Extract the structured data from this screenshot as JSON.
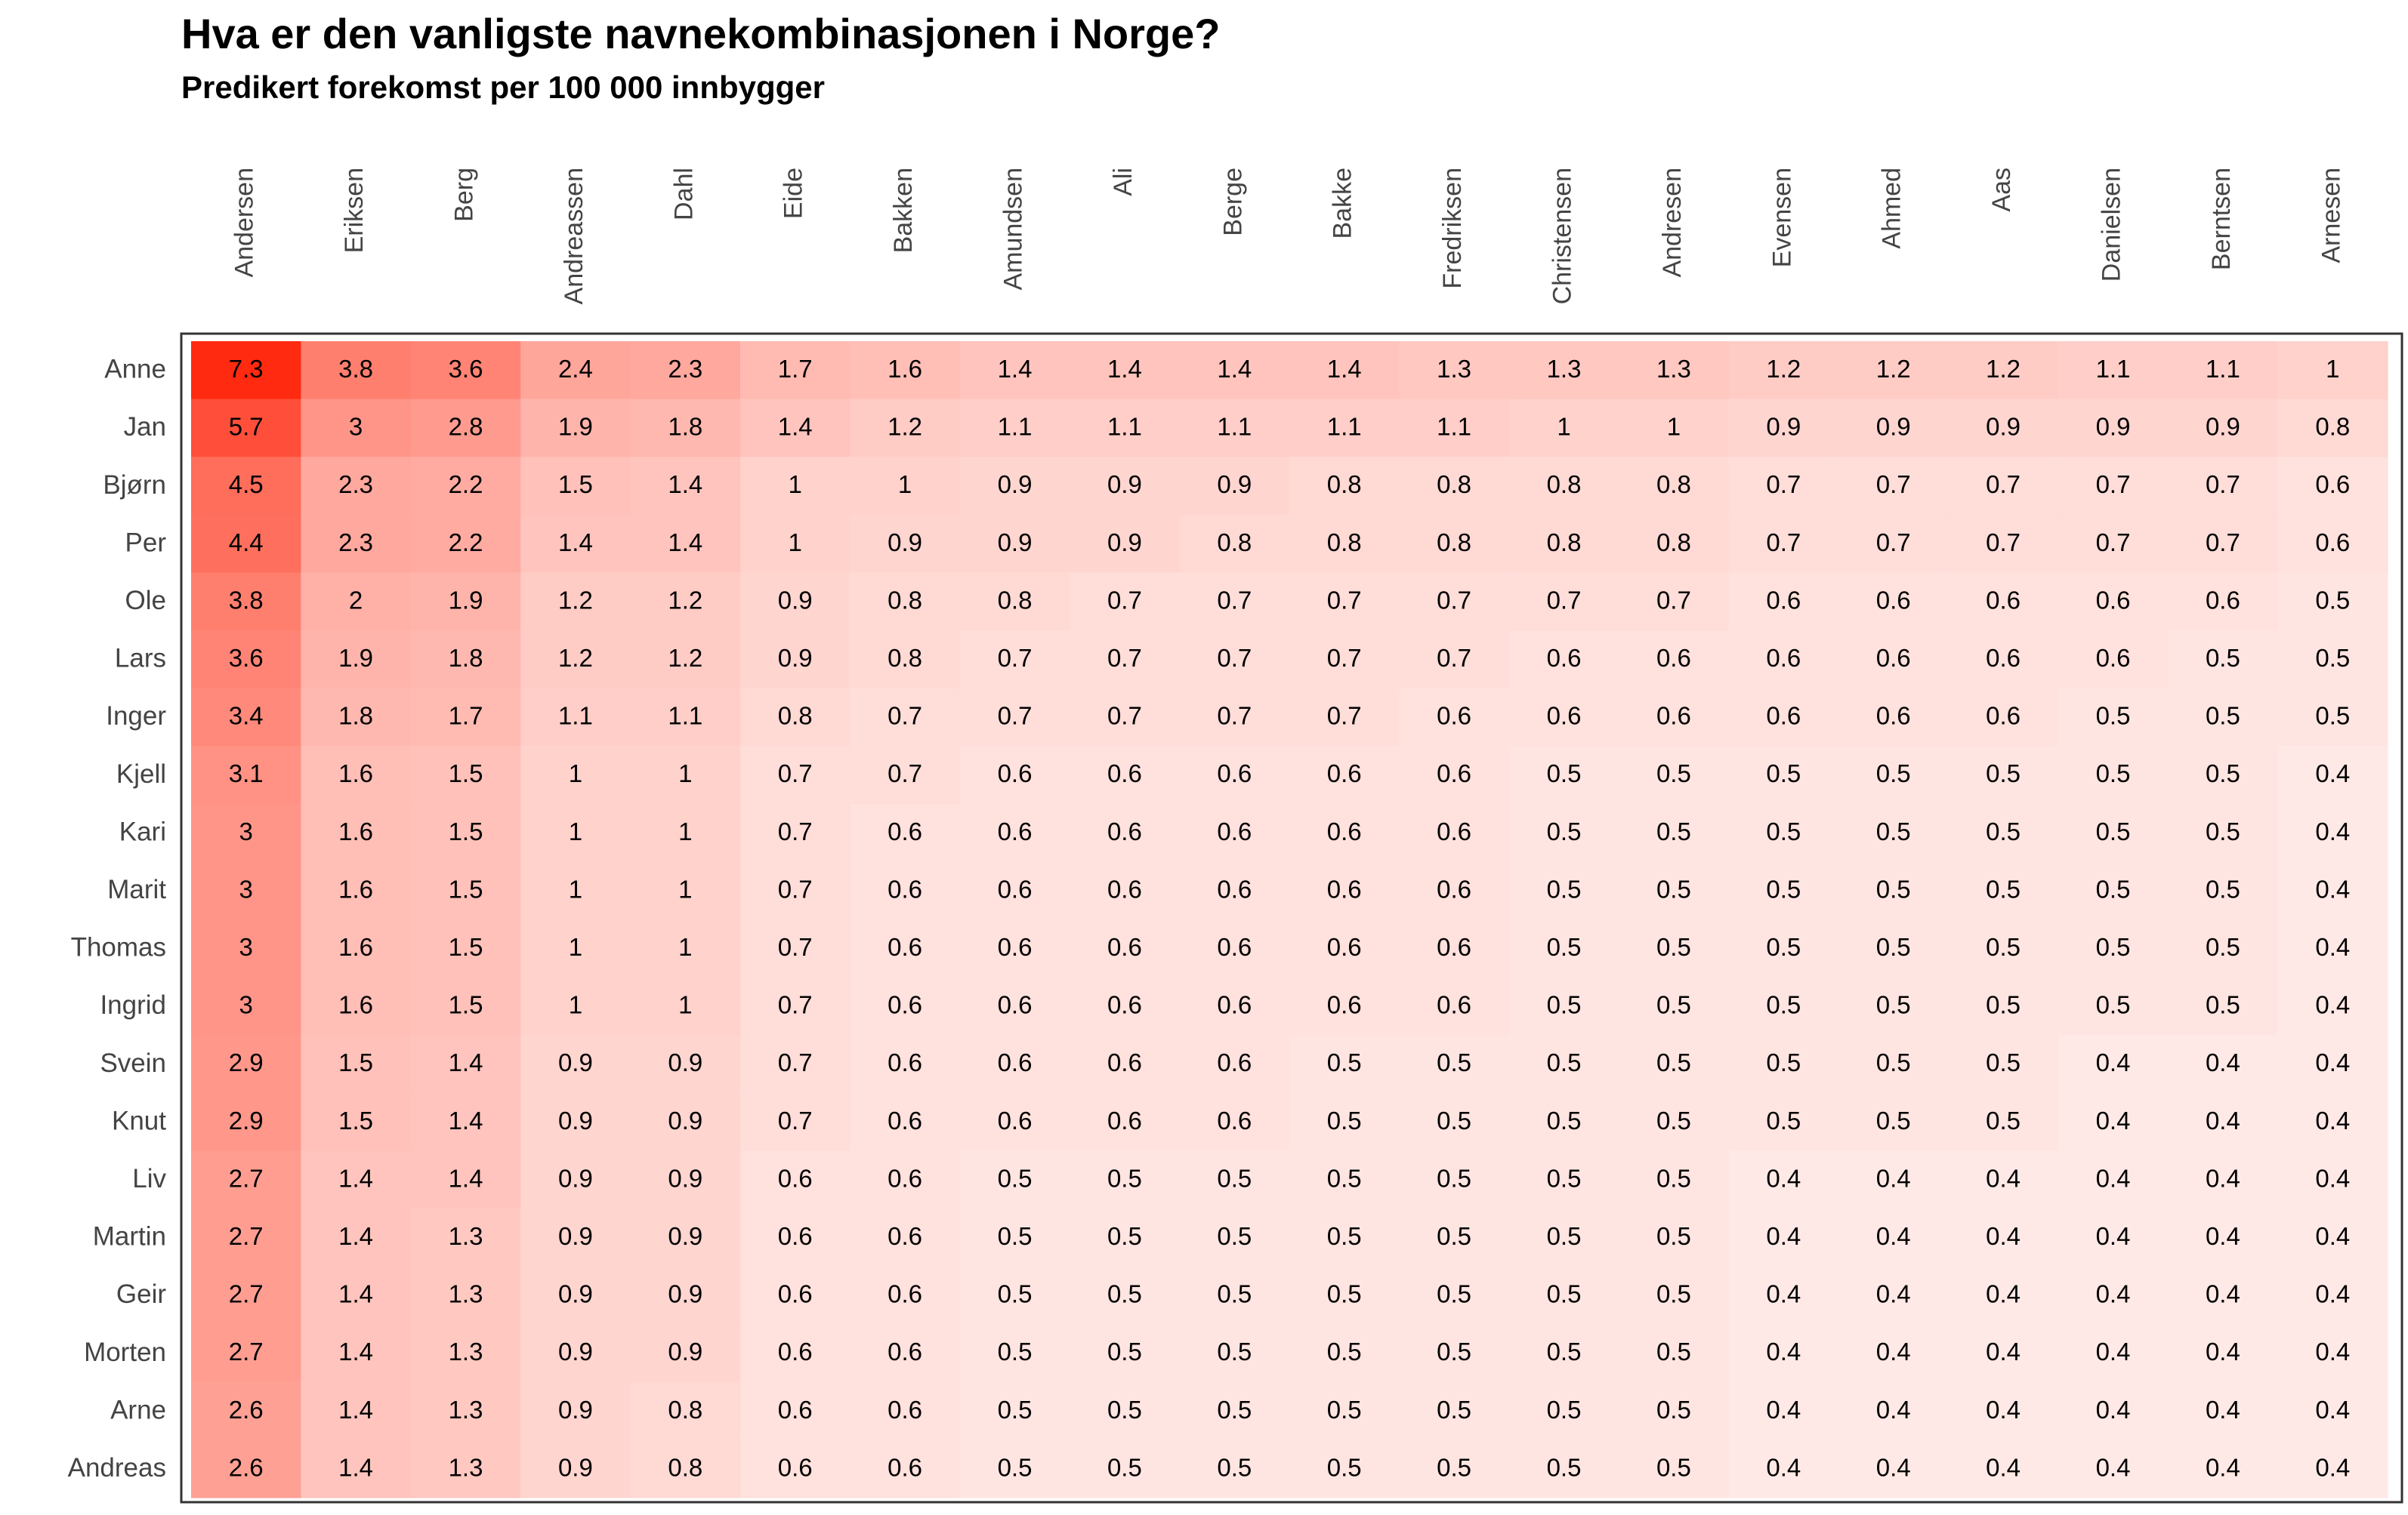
{
  "chart_data": {
    "type": "heatmap",
    "title": "Hva er den vanligste navnekombinasjonen i Norge?",
    "subtitle": "Predikert forekomst per 100 000 innbygger",
    "x_categories": [
      "Andersen",
      "Eriksen",
      "Berg",
      "Andreassen",
      "Dahl",
      "Eide",
      "Bakken",
      "Amundsen",
      "Ali",
      "Berge",
      "Bakke",
      "Fredriksen",
      "Christensen",
      "Andresen",
      "Evensen",
      "Ahmed",
      "Aas",
      "Danielsen",
      "Berntsen",
      "Arnesen"
    ],
    "y_categories": [
      "Anne",
      "Jan",
      "Bjørn",
      "Per",
      "Ole",
      "Lars",
      "Inger",
      "Kjell",
      "Kari",
      "Marit",
      "Thomas",
      "Ingrid",
      "Svein",
      "Knut",
      "Liv",
      "Martin",
      "Geir",
      "Morten",
      "Arne",
      "Andreas"
    ],
    "values": [
      [
        "7.3",
        "3.8",
        "3.6",
        "2.4",
        "2.3",
        "1.7",
        "1.6",
        "1.4",
        "1.4",
        "1.4",
        "1.4",
        "1.3",
        "1.3",
        "1.3",
        "1.2",
        "1.2",
        "1.2",
        "1.1",
        "1.1",
        "1"
      ],
      [
        "5.7",
        "3",
        "2.8",
        "1.9",
        "1.8",
        "1.4",
        "1.2",
        "1.1",
        "1.1",
        "1.1",
        "1.1",
        "1.1",
        "1",
        "1",
        "0.9",
        "0.9",
        "0.9",
        "0.9",
        "0.9",
        "0.8"
      ],
      [
        "4.5",
        "2.3",
        "2.2",
        "1.5",
        "1.4",
        "1",
        "1",
        "0.9",
        "0.9",
        "0.9",
        "0.8",
        "0.8",
        "0.8",
        "0.8",
        "0.7",
        "0.7",
        "0.7",
        "0.7",
        "0.7",
        "0.6"
      ],
      [
        "4.4",
        "2.3",
        "2.2",
        "1.4",
        "1.4",
        "1",
        "0.9",
        "0.9",
        "0.9",
        "0.8",
        "0.8",
        "0.8",
        "0.8",
        "0.8",
        "0.7",
        "0.7",
        "0.7",
        "0.7",
        "0.7",
        "0.6"
      ],
      [
        "3.8",
        "2",
        "1.9",
        "1.2",
        "1.2",
        "0.9",
        "0.8",
        "0.8",
        "0.7",
        "0.7",
        "0.7",
        "0.7",
        "0.7",
        "0.7",
        "0.6",
        "0.6",
        "0.6",
        "0.6",
        "0.6",
        "0.5"
      ],
      [
        "3.6",
        "1.9",
        "1.8",
        "1.2",
        "1.2",
        "0.9",
        "0.8",
        "0.7",
        "0.7",
        "0.7",
        "0.7",
        "0.7",
        "0.6",
        "0.6",
        "0.6",
        "0.6",
        "0.6",
        "0.6",
        "0.5",
        "0.5"
      ],
      [
        "3.4",
        "1.8",
        "1.7",
        "1.1",
        "1.1",
        "0.8",
        "0.7",
        "0.7",
        "0.7",
        "0.7",
        "0.7",
        "0.6",
        "0.6",
        "0.6",
        "0.6",
        "0.6",
        "0.6",
        "0.5",
        "0.5",
        "0.5"
      ],
      [
        "3.1",
        "1.6",
        "1.5",
        "1",
        "1",
        "0.7",
        "0.7",
        "0.6",
        "0.6",
        "0.6",
        "0.6",
        "0.6",
        "0.5",
        "0.5",
        "0.5",
        "0.5",
        "0.5",
        "0.5",
        "0.5",
        "0.4"
      ],
      [
        "3",
        "1.6",
        "1.5",
        "1",
        "1",
        "0.7",
        "0.6",
        "0.6",
        "0.6",
        "0.6",
        "0.6",
        "0.6",
        "0.5",
        "0.5",
        "0.5",
        "0.5",
        "0.5",
        "0.5",
        "0.5",
        "0.4"
      ],
      [
        "3",
        "1.6",
        "1.5",
        "1",
        "1",
        "0.7",
        "0.6",
        "0.6",
        "0.6",
        "0.6",
        "0.6",
        "0.6",
        "0.5",
        "0.5",
        "0.5",
        "0.5",
        "0.5",
        "0.5",
        "0.5",
        "0.4"
      ],
      [
        "3",
        "1.6",
        "1.5",
        "1",
        "1",
        "0.7",
        "0.6",
        "0.6",
        "0.6",
        "0.6",
        "0.6",
        "0.6",
        "0.5",
        "0.5",
        "0.5",
        "0.5",
        "0.5",
        "0.5",
        "0.5",
        "0.4"
      ],
      [
        "3",
        "1.6",
        "1.5",
        "1",
        "1",
        "0.7",
        "0.6",
        "0.6",
        "0.6",
        "0.6",
        "0.6",
        "0.6",
        "0.5",
        "0.5",
        "0.5",
        "0.5",
        "0.5",
        "0.5",
        "0.5",
        "0.4"
      ],
      [
        "2.9",
        "1.5",
        "1.4",
        "0.9",
        "0.9",
        "0.7",
        "0.6",
        "0.6",
        "0.6",
        "0.6",
        "0.5",
        "0.5",
        "0.5",
        "0.5",
        "0.5",
        "0.5",
        "0.5",
        "0.4",
        "0.4",
        "0.4"
      ],
      [
        "2.9",
        "1.5",
        "1.4",
        "0.9",
        "0.9",
        "0.7",
        "0.6",
        "0.6",
        "0.6",
        "0.6",
        "0.5",
        "0.5",
        "0.5",
        "0.5",
        "0.5",
        "0.5",
        "0.5",
        "0.4",
        "0.4",
        "0.4"
      ],
      [
        "2.7",
        "1.4",
        "1.4",
        "0.9",
        "0.9",
        "0.6",
        "0.6",
        "0.5",
        "0.5",
        "0.5",
        "0.5",
        "0.5",
        "0.5",
        "0.5",
        "0.4",
        "0.4",
        "0.4",
        "0.4",
        "0.4",
        "0.4"
      ],
      [
        "2.7",
        "1.4",
        "1.3",
        "0.9",
        "0.9",
        "0.6",
        "0.6",
        "0.5",
        "0.5",
        "0.5",
        "0.5",
        "0.5",
        "0.5",
        "0.5",
        "0.4",
        "0.4",
        "0.4",
        "0.4",
        "0.4",
        "0.4"
      ],
      [
        "2.7",
        "1.4",
        "1.3",
        "0.9",
        "0.9",
        "0.6",
        "0.6",
        "0.5",
        "0.5",
        "0.5",
        "0.5",
        "0.5",
        "0.5",
        "0.5",
        "0.4",
        "0.4",
        "0.4",
        "0.4",
        "0.4",
        "0.4"
      ],
      [
        "2.7",
        "1.4",
        "1.3",
        "0.9",
        "0.9",
        "0.6",
        "0.6",
        "0.5",
        "0.5",
        "0.5",
        "0.5",
        "0.5",
        "0.5",
        "0.5",
        "0.4",
        "0.4",
        "0.4",
        "0.4",
        "0.4",
        "0.4"
      ],
      [
        "2.6",
        "1.4",
        "1.3",
        "0.9",
        "0.8",
        "0.6",
        "0.6",
        "0.5",
        "0.5",
        "0.5",
        "0.5",
        "0.5",
        "0.5",
        "0.5",
        "0.4",
        "0.4",
        "0.4",
        "0.4",
        "0.4",
        "0.4"
      ],
      [
        "2.6",
        "1.4",
        "1.3",
        "0.9",
        "0.8",
        "0.6",
        "0.6",
        "0.5",
        "0.5",
        "0.5",
        "0.5",
        "0.5",
        "0.5",
        "0.5",
        "0.4",
        "0.4",
        "0.4",
        "0.4",
        "0.4",
        "0.4"
      ]
    ],
    "color_scale": {
      "low": "#ffffff",
      "high": "#ff2a10",
      "min": 0,
      "max": 7.3
    },
    "x_label_position": "top",
    "legend": "none"
  }
}
